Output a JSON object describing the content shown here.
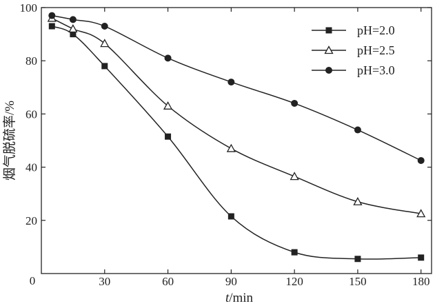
{
  "chart_data": {
    "type": "line",
    "x_title_italic": "t",
    "x_title_unit": "/min",
    "ylabel": "烟气脱硫率/%",
    "xlim": [
      0,
      185
    ],
    "ylim": [
      0,
      100
    ],
    "x_ticks": [
      30,
      60,
      90,
      120,
      150,
      180
    ],
    "y_ticks": [
      20,
      40,
      60,
      80,
      100
    ],
    "origin_label": "0",
    "grid": false,
    "legend_position": "top-right",
    "series": [
      {
        "name": "pH=2.0",
        "marker": "square",
        "points": [
          [
            5,
            93
          ],
          [
            15,
            90
          ],
          [
            30,
            78
          ],
          [
            60,
            51.5
          ],
          [
            90,
            21.5
          ],
          [
            120,
            8
          ],
          [
            150,
            5.5
          ],
          [
            180,
            6
          ]
        ]
      },
      {
        "name": "pH=2.5",
        "marker": "triangle",
        "points": [
          [
            5,
            96
          ],
          [
            15,
            92
          ],
          [
            30,
            86.5
          ],
          [
            60,
            63
          ],
          [
            90,
            47
          ],
          [
            120,
            36.5
          ],
          [
            150,
            27
          ],
          [
            180,
            22.5
          ]
        ]
      },
      {
        "name": "pH=3.0",
        "marker": "circle",
        "points": [
          [
            5,
            97
          ],
          [
            15,
            95.5
          ],
          [
            30,
            93
          ],
          [
            60,
            81
          ],
          [
            90,
            72
          ],
          [
            120,
            64
          ],
          [
            150,
            54
          ],
          [
            180,
            42.5
          ]
        ]
      }
    ]
  }
}
